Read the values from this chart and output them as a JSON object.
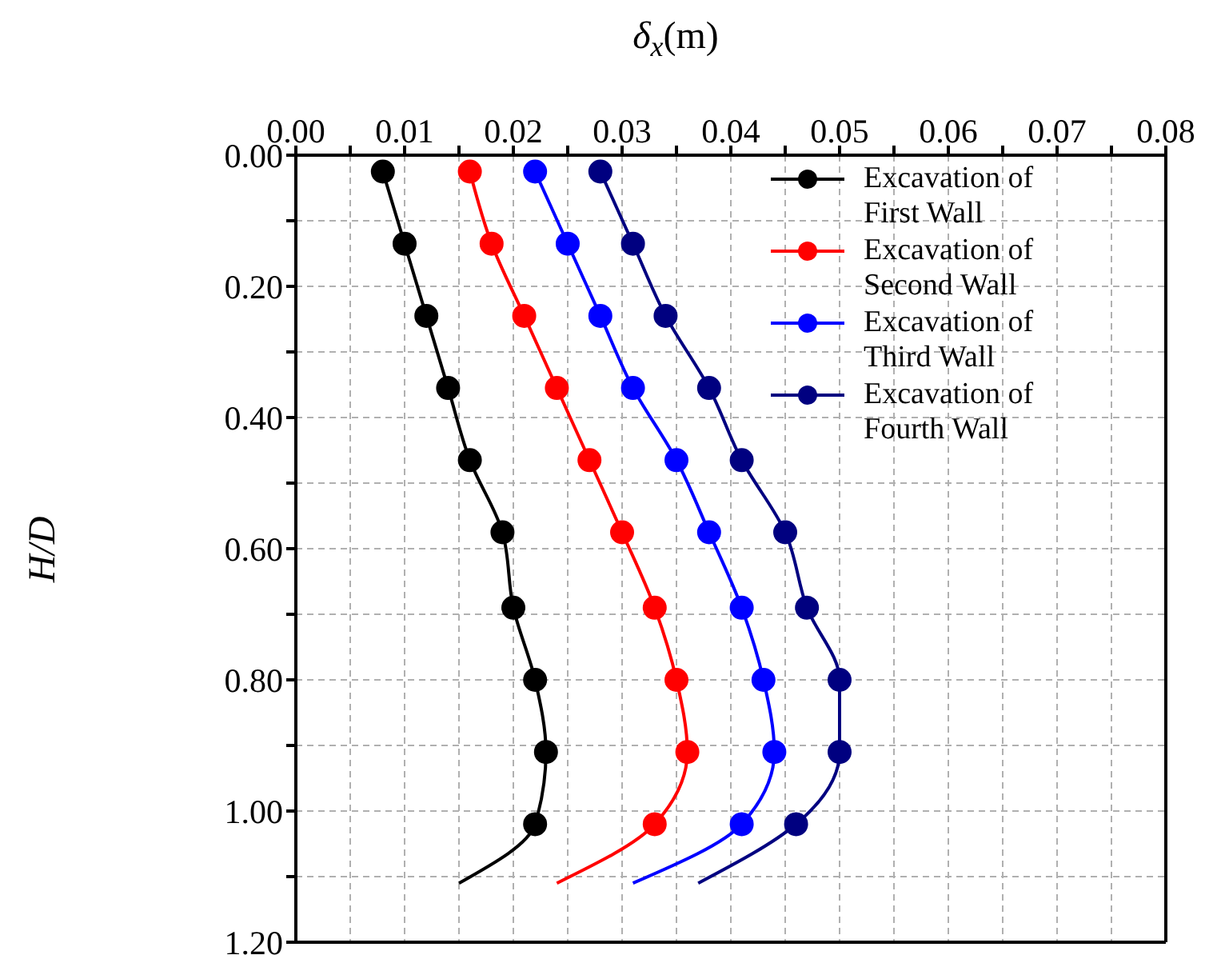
{
  "chart_data": {
    "type": "line",
    "xlabel": "δ$_{x}$(m)",
    "ylabel": "H/D",
    "series": [
      {
        "name": "Excavation of First Wall",
        "color": "#000000",
        "x": [
          0.008,
          0.01,
          0.012,
          0.014,
          0.016,
          0.019,
          0.02,
          0.022,
          0.023,
          0.022,
          0.015
        ],
        "values": [
          0.025,
          0.135,
          0.245,
          0.355,
          0.465,
          0.575,
          0.69,
          0.8,
          0.91,
          1.02,
          1.11
        ]
      },
      {
        "name": "Excavation of Second Wall",
        "color": "#ff0000",
        "x": [
          0.016,
          0.018,
          0.021,
          0.024,
          0.027,
          0.03,
          0.033,
          0.035,
          0.036,
          0.033,
          0.024
        ],
        "values": [
          0.025,
          0.135,
          0.245,
          0.355,
          0.465,
          0.575,
          0.69,
          0.8,
          0.91,
          1.02,
          1.11
        ]
      },
      {
        "name": "Excavation of Third Wall",
        "color": "#0000ff",
        "x": [
          0.022,
          0.025,
          0.028,
          0.031,
          0.035,
          0.038,
          0.041,
          0.043,
          0.044,
          0.041,
          0.031
        ],
        "values": [
          0.025,
          0.135,
          0.245,
          0.355,
          0.465,
          0.575,
          0.69,
          0.8,
          0.91,
          1.02,
          1.11
        ]
      },
      {
        "name": "Excavation of Fourth Wall",
        "color": "#000080",
        "x": [
          0.028,
          0.031,
          0.034,
          0.038,
          0.041,
          0.045,
          0.047,
          0.05,
          0.05,
          0.046,
          0.037
        ],
        "values": [
          0.025,
          0.135,
          0.245,
          0.355,
          0.465,
          0.575,
          0.69,
          0.8,
          0.91,
          1.02,
          1.11
        ]
      }
    ],
    "xlim": [
      0,
      0.08
    ],
    "xticks": [
      {
        "value": 0,
        "label": "0.00"
      },
      {
        "value": 0.005,
        "label": null
      },
      {
        "value": 0.01,
        "label": "0.01"
      },
      {
        "value": 0.015,
        "label": null
      },
      {
        "value": 0.02,
        "label": "0.02"
      },
      {
        "value": 0.025,
        "label": null
      },
      {
        "value": 0.03,
        "label": "0.03"
      },
      {
        "value": 0.035,
        "label": null
      },
      {
        "value": 0.04,
        "label": "0.04"
      },
      {
        "value": 0.045,
        "label": null
      },
      {
        "value": 0.05,
        "label": "0.05"
      },
      {
        "value": 0.055,
        "label": null
      },
      {
        "value": 0.06,
        "label": "0.06"
      },
      {
        "value": 0.065,
        "label": null
      },
      {
        "value": 0.07,
        "label": "0.07"
      },
      {
        "value": 0.075,
        "label": null
      },
      {
        "value": 0.08,
        "label": "0.08"
      }
    ],
    "ylim": [
      1.2,
      0
    ],
    "yticks": [
      {
        "value": 0,
        "label": "0.00"
      },
      {
        "value": 0.1,
        "label": null
      },
      {
        "value": 0.2,
        "label": "0.20"
      },
      {
        "value": 0.3,
        "label": null
      },
      {
        "value": 0.4,
        "label": "0.40"
      },
      {
        "value": 0.5,
        "label": null
      },
      {
        "value": 0.6,
        "label": "0.60"
      },
      {
        "value": 0.7,
        "label": null
      },
      {
        "value": 0.8,
        "label": "0.80"
      },
      {
        "value": 0.9,
        "label": null
      },
      {
        "value": 1,
        "label": "1.00"
      },
      {
        "value": 1.1,
        "label": null
      },
      {
        "value": 1.2,
        "label": "1.20"
      }
    ],
    "grid": true,
    "legend": "top right",
    "marker": "circle",
    "line_style": "solid"
  }
}
